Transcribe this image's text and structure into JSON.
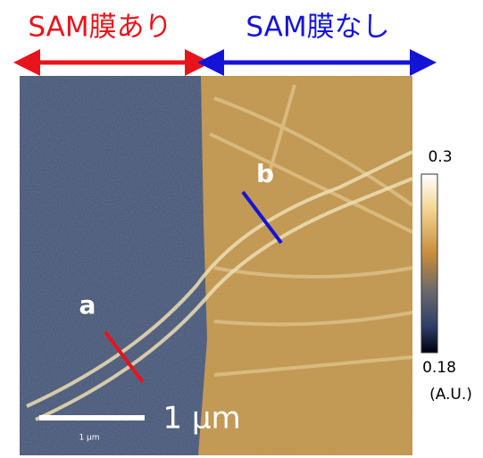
{
  "labels": {
    "with_sam": "SAM膜あり",
    "without_sam": "SAM膜なし",
    "point_a": "a",
    "point_b": "b"
  },
  "scale_bar": {
    "label": "1 μm",
    "small_label": "1 μm"
  },
  "colorbar": {
    "max": 0.3,
    "min": 0.18,
    "unit": "(A.U.)"
  }
}
